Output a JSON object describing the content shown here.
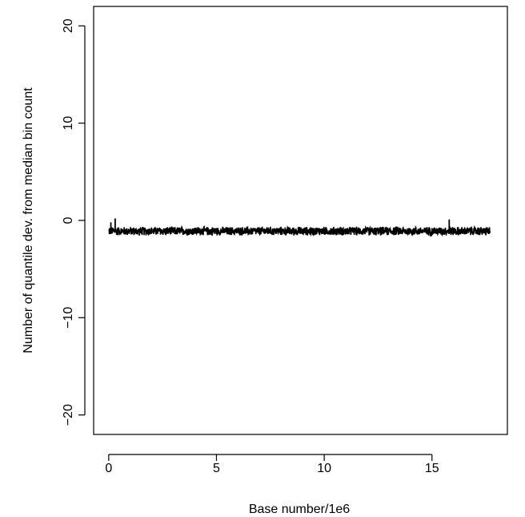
{
  "chart_data": {
    "type": "line",
    "title": "",
    "xlabel": "Base number/1e6",
    "ylabel": "Number of quantile dev. from median bin count",
    "xlim": [
      -0.7,
      18.5
    ],
    "ylim": [
      -22,
      22
    ],
    "xticks": [
      0,
      5,
      10,
      15
    ],
    "yticks": [
      -20,
      -10,
      0,
      10,
      20
    ],
    "xtick_labels": [
      "0",
      "5",
      "10",
      "15"
    ],
    "ytick_labels": [
      "−20",
      "−10",
      "0",
      "10",
      "20"
    ],
    "grid": false,
    "legend": "none",
    "series": [
      {
        "x_range": [
          0.0,
          17.7
        ],
        "baseline": -1.1,
        "band": [
          -1.6,
          -0.6
        ],
        "color": "#000000",
        "spikes": [
          {
            "x": 0.3,
            "y": 0.2
          },
          {
            "x": 15.8,
            "y": 0.1
          },
          {
            "x": 0.1,
            "y": -0.2
          }
        ]
      }
    ]
  }
}
